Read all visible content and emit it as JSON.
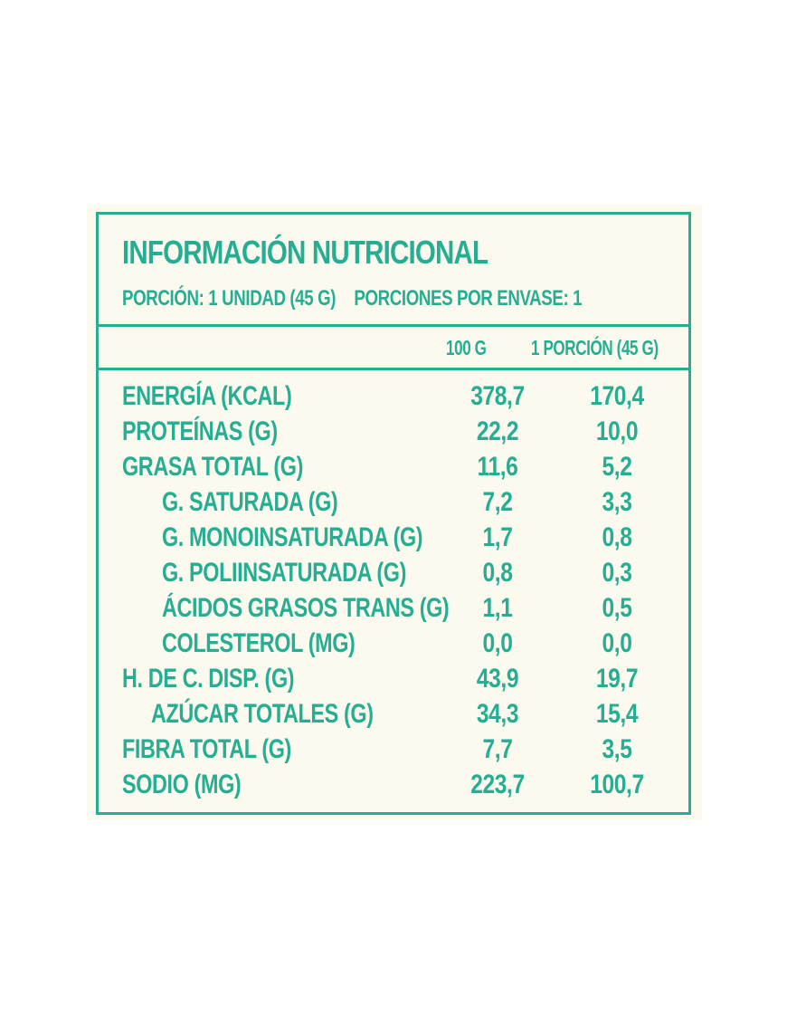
{
  "label": {
    "title": "INFORMACIÓN NUTRICIONAL",
    "serving_size": "PORCIÓN: 1 UNIDAD (45 G)",
    "servings_per_container": "PORCIONES POR ENVASE: 1",
    "columns": [
      "100 G",
      "1 PORCIÓN (45 G)"
    ],
    "rows": [
      {
        "name": "ENERGÍA (KCAL)",
        "per_100g": "378,7",
        "per_portion": "170,4"
      },
      {
        "name": "PROTEÍNAS (G)",
        "per_100g": "22,2",
        "per_portion": "10,0"
      },
      {
        "name": "GRASA TOTAL (G)",
        "per_100g": "11,6",
        "per_portion": "5,2"
      },
      {
        "name": "G. SATURADA (G)",
        "per_100g": "7,2",
        "per_portion": "3,3"
      },
      {
        "name": "G. MONOINSATURADA (G)",
        "per_100g": "1,7",
        "per_portion": "0,8"
      },
      {
        "name": "G. POLIINSATURADA (G)",
        "per_100g": "0,8",
        "per_portion": "0,3"
      },
      {
        "name": "ÁCIDOS GRASOS TRANS (G)",
        "per_100g": "1,1",
        "per_portion": "0,5"
      },
      {
        "name": "COLESTEROL (MG)",
        "per_100g": "0,0",
        "per_portion": "0,0"
      },
      {
        "name": "H. DE C. DISP. (G)",
        "per_100g": "43,9",
        "per_portion": "19,7"
      },
      {
        "name": "AZÚCAR TOTALES (G)",
        "per_100g": "34,3",
        "per_portion": "15,4"
      },
      {
        "name": "FIBRA TOTAL (G)",
        "per_100g": "7,7",
        "per_portion": "3,5"
      },
      {
        "name": "SODIO (MG)",
        "per_100g": "223,7",
        "per_portion": "100,7"
      }
    ]
  },
  "colors": {
    "accent": "#26ae92",
    "label_background": "#fcf9ee",
    "page_background": "#ffffff"
  }
}
